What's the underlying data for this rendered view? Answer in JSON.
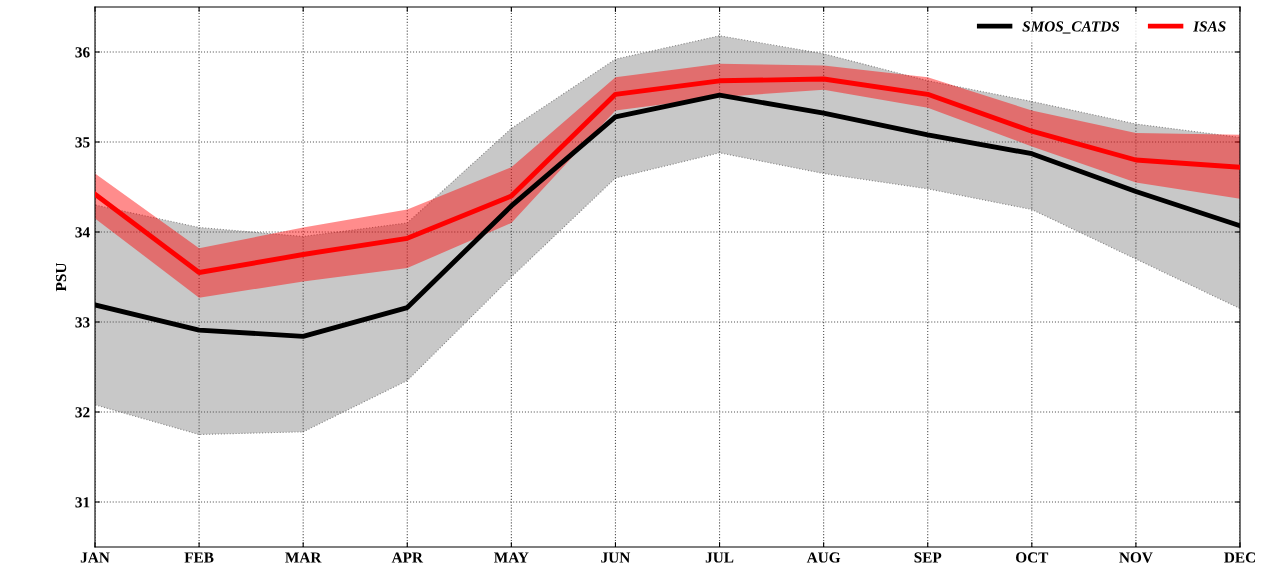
{
  "chart_data": {
    "type": "line",
    "ylabel": "PSU",
    "categories": [
      "JAN",
      "FEB",
      "MAR",
      "APR",
      "MAY",
      "JUN",
      "JUL",
      "AUG",
      "SEP",
      "OCT",
      "NOV",
      "DEC"
    ],
    "ylim": [
      30.5,
      36.5
    ],
    "yticks": [
      31,
      32,
      33,
      34,
      35,
      36
    ],
    "grid": true,
    "legend": "top right",
    "line_style": "solid",
    "marker": "none",
    "series": [
      {
        "name": "SMOS_CATDS",
        "color": "#000000",
        "values": [
          33.19,
          32.91,
          32.84,
          33.16,
          34.29,
          35.28,
          35.52,
          35.32,
          35.08,
          34.87,
          34.45,
          34.07
        ],
        "lower": [
          32.08,
          31.75,
          31.78,
          32.35,
          33.5,
          34.6,
          34.88,
          34.65,
          34.48,
          34.25,
          33.7,
          33.15
        ],
        "upper": [
          34.3,
          34.05,
          33.95,
          34.1,
          35.15,
          35.92,
          36.18,
          35.98,
          35.68,
          35.45,
          35.2,
          35.05
        ]
      },
      {
        "name": "ISAS",
        "color": "#ff0000",
        "values": [
          34.42,
          33.55,
          33.75,
          33.93,
          34.4,
          35.53,
          35.68,
          35.7,
          35.53,
          35.12,
          34.8,
          34.72
        ],
        "lower": [
          34.15,
          33.27,
          33.45,
          33.6,
          34.1,
          35.35,
          35.5,
          35.58,
          35.38,
          34.95,
          34.55,
          34.37
        ],
        "upper": [
          34.65,
          33.82,
          34.05,
          34.25,
          34.72,
          35.72,
          35.87,
          35.85,
          35.72,
          35.35,
          35.1,
          35.08
        ]
      }
    ]
  }
}
